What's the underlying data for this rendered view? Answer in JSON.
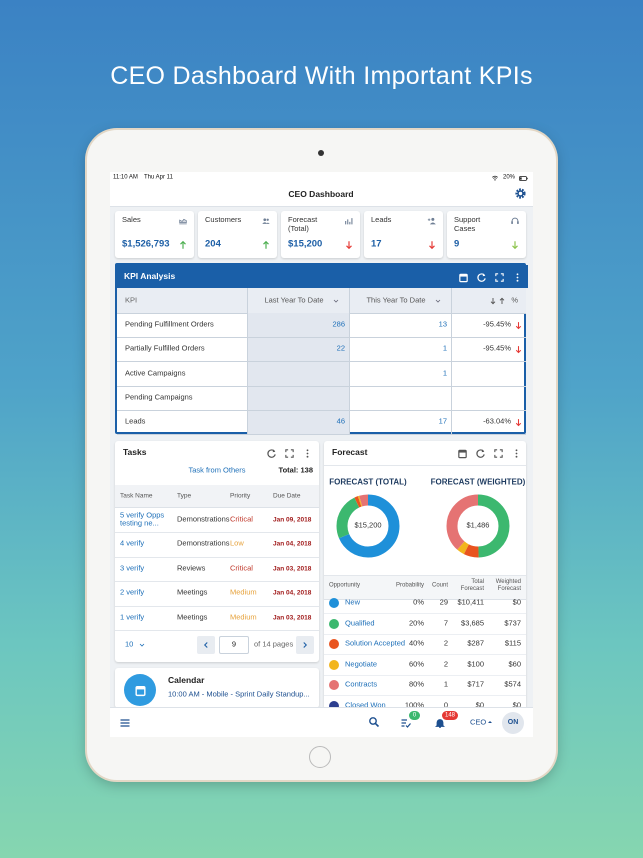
{
  "headline": "CEO Dashboard With Important KPIs",
  "status_bar": {
    "time": "11:10 AM",
    "date": "Thu Apr 11",
    "battery": "20%"
  },
  "app_title": "CEO Dashboard",
  "kpi_cards": [
    {
      "label": "Sales",
      "value": "$1,526,793",
      "trend": "up",
      "color": "#4caf50"
    },
    {
      "label": "Customers",
      "value": "204",
      "trend": "up",
      "color": "#4caf50"
    },
    {
      "label": "Forecast (Total)",
      "value": "$15,200",
      "trend": "down",
      "color": "#e53935"
    },
    {
      "label": "Leads",
      "value": "17",
      "trend": "down",
      "color": "#e53935"
    },
    {
      "label": "Support Cases",
      "value": "9",
      "trend": "down",
      "color": "#8bc34a"
    }
  ],
  "kpi_analysis": {
    "title": "KPI Analysis",
    "columns": [
      "KPI",
      "Last Year To Date",
      "This Year To Date",
      "%"
    ],
    "rows": [
      [
        "Pending Fulfillment Orders",
        "286",
        "13",
        "-95.45%"
      ],
      [
        "Partially Fulfilled Orders",
        "22",
        "1",
        "-95.45%"
      ],
      [
        "Active Campaigns",
        null,
        "1",
        null
      ],
      [
        "Pending Campaigns",
        null,
        null,
        null
      ],
      [
        "Leads",
        "46",
        "17",
        "-63.04%"
      ]
    ]
  },
  "tasks": {
    "title": "Tasks",
    "filter": "Task from Others",
    "total": "Total: 138",
    "columns": [
      "Task Name",
      "Type",
      "Priority",
      "Due Date"
    ],
    "rows": [
      [
        "5 verify Opps testing ne...",
        "Demonstrations",
        "Critical",
        "Jan 09, 2018"
      ],
      [
        "4 verify",
        "Demonstrations",
        "Low",
        "Jan 04, 2018"
      ],
      [
        "3 verify",
        "Reviews",
        "Critical",
        "Jan 03, 2018"
      ],
      [
        "2 verify",
        "Meetings",
        "Medium",
        "Jan 04, 2018"
      ],
      [
        "1 verify",
        "Meetings",
        "Medium",
        "Jan 03, 2018"
      ]
    ],
    "priority_colors": [
      "#c0392b",
      "#e6a23c",
      "#c0392b",
      "#e6a23c",
      "#e6a23c"
    ],
    "page_size": "10",
    "page": "9",
    "pages": "of 14 pages"
  },
  "calendar": {
    "title": "Calendar",
    "event": "10:00 AM - Mobile - Sprint Daily Standup..."
  },
  "forecast": {
    "title": "Forecast",
    "donuts": [
      {
        "title": "FORECAST (TOTAL)",
        "center": "$15,200",
        "values": [
          10411,
          3685,
          287,
          100,
          717,
          0
        ]
      },
      {
        "title": "FORECAST (WEIGHTED)",
        "center": "$1,486",
        "values": [
          0,
          737,
          115,
          60,
          574,
          0
        ]
      }
    ],
    "columns": [
      "Opportunity",
      "Probability",
      "Count",
      "Total Forecast",
      "Weighted Forecast"
    ],
    "rows": [
      {
        "name": "New",
        "color": "#1e90d9",
        "probability": "0%",
        "count": "29",
        "total": "$10,411",
        "weighted": "$0"
      },
      {
        "name": "Qualified",
        "color": "#3cb86f",
        "probability": "20%",
        "count": "7",
        "total": "$3,685",
        "weighted": "$737"
      },
      {
        "name": "Solution Accepted",
        "color": "#e9541f",
        "probability": "40%",
        "count": "2",
        "total": "$287",
        "weighted": "$115"
      },
      {
        "name": "Negotiate",
        "color": "#f2b51d",
        "probability": "60%",
        "count": "2",
        "total": "$100",
        "weighted": "$60"
      },
      {
        "name": "Contracts",
        "color": "#e57373",
        "probability": "80%",
        "count": "1",
        "total": "$717",
        "weighted": "$574"
      },
      {
        "name": "Closed Won",
        "color": "#2c3e8f",
        "probability": "100%",
        "count": "0",
        "total": "$0",
        "weighted": "$0"
      }
    ]
  },
  "bottom_bar": {
    "tasks_badge": "0",
    "alerts_badge": "148",
    "role": "CEO",
    "avatar": "ON"
  }
}
